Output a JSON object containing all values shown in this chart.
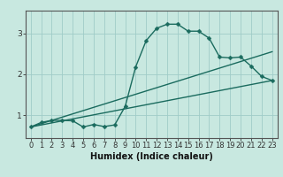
{
  "xlabel": "Humidex (Indice chaleur)",
  "bg_color": "#c8e8e0",
  "grid_color": "#b0d8d0",
  "line_color": "#1a6b5e",
  "xlim": [
    -0.5,
    23.5
  ],
  "ylim": [
    0.45,
    3.55
  ],
  "yticks": [
    1,
    2,
    3
  ],
  "xticks": [
    0,
    1,
    2,
    3,
    4,
    5,
    6,
    7,
    8,
    9,
    10,
    11,
    12,
    13,
    14,
    15,
    16,
    17,
    18,
    19,
    20,
    21,
    22,
    23
  ],
  "curve1_x": [
    0,
    1,
    2,
    3,
    4,
    5,
    6,
    7,
    8,
    9,
    10,
    11,
    12,
    13,
    14,
    15,
    16,
    17,
    18,
    19,
    20,
    21,
    22,
    23
  ],
  "curve1_y": [
    0.72,
    0.83,
    0.88,
    0.88,
    0.87,
    0.72,
    0.78,
    0.73,
    0.77,
    1.22,
    2.18,
    2.82,
    3.12,
    3.22,
    3.22,
    3.05,
    3.05,
    2.88,
    2.42,
    2.4,
    2.42,
    2.2,
    1.95,
    1.85
  ],
  "curve2_x": [
    0,
    23
  ],
  "curve2_y": [
    0.72,
    1.85
  ],
  "curve3_x": [
    0,
    23
  ],
  "curve3_y": [
    0.72,
    2.55
  ],
  "xlabel_fontsize": 7,
  "tick_fontsize": 6,
  "linewidth": 1.0,
  "markersize": 2.5
}
